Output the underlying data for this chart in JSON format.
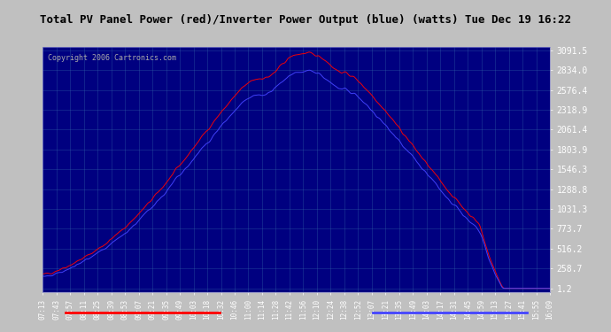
{
  "title": "Total PV Panel Power (red)/Inverter Power Output (blue) (watts) Tue Dec 19 16:22",
  "copyright_text": "Copyright 2006 Cartronics.com",
  "background_color": "#000080",
  "plot_bg_color": "#000080",
  "grid_color": "#4444aa",
  "title_color": "#ffffff",
  "title_bg_color": "#c0c0c0",
  "red_color": "#ff0000",
  "blue_color": "#4444ff",
  "yticks": [
    1.2,
    258.7,
    516.2,
    773.7,
    1031.3,
    1288.8,
    1546.3,
    1803.9,
    2061.4,
    2318.9,
    2576.4,
    2834.0,
    3091.5
  ],
  "ymin": 1.2,
  "ymax": 3091.5,
  "x_labels": [
    "07:13",
    "07:43",
    "07:57",
    "08:11",
    "08:25",
    "08:39",
    "08:53",
    "09:07",
    "09:21",
    "09:35",
    "09:49",
    "10:03",
    "10:18",
    "10:32",
    "10:46",
    "11:00",
    "11:14",
    "11:28",
    "11:42",
    "11:56",
    "12:10",
    "12:24",
    "12:38",
    "12:52",
    "13:07",
    "13:21",
    "13:35",
    "13:49",
    "14:03",
    "14:17",
    "14:31",
    "14:45",
    "14:59",
    "15:13",
    "15:27",
    "15:41",
    "15:55",
    "16:09"
  ]
}
